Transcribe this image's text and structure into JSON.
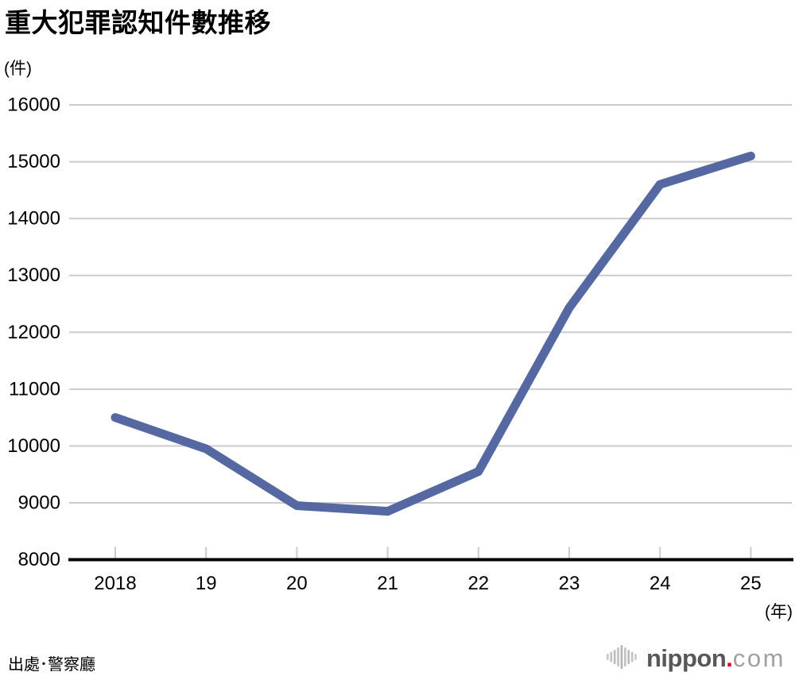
{
  "title": "重大犯罪認知件數推移",
  "y_axis_unit": "(件)",
  "x_axis_unit": "(年)",
  "footer": {
    "source": "出處･警察廳",
    "logo": {
      "bold_text": "nippon",
      "dot": ".",
      "light_text": "com"
    }
  },
  "colors": {
    "line": "#5668a2",
    "gridline": "#cccccc",
    "axis": "#000000",
    "logo_dark_gray": "#595757",
    "logo_light_gray": "#9fa0a0",
    "logo_red": "#e60012",
    "logo_bars_gray": "#c2c2c2"
  },
  "chart_data": {
    "type": "line",
    "title": "重大犯罪認知件數推移",
    "categories": [
      "2018",
      "19",
      "20",
      "21",
      "22",
      "23",
      "24",
      "25"
    ],
    "values": [
      10500,
      9950,
      8950,
      8850,
      9550,
      12430,
      14600,
      15100
    ],
    "series": [
      {
        "name": "重大犯罪認知件數",
        "values": [
          10500,
          9950,
          8950,
          8850,
          9550,
          12430,
          14600,
          15100
        ]
      }
    ],
    "xlabel": "(年)",
    "ylabel": "(件)",
    "ylim": [
      8000,
      16000
    ],
    "y_ticks": [
      8000,
      9000,
      10000,
      11000,
      12000,
      13000,
      14000,
      15000,
      16000
    ],
    "grid": "horizontal",
    "legend": "none",
    "line_color": "#5668a2",
    "source": "出處･警察廳"
  }
}
